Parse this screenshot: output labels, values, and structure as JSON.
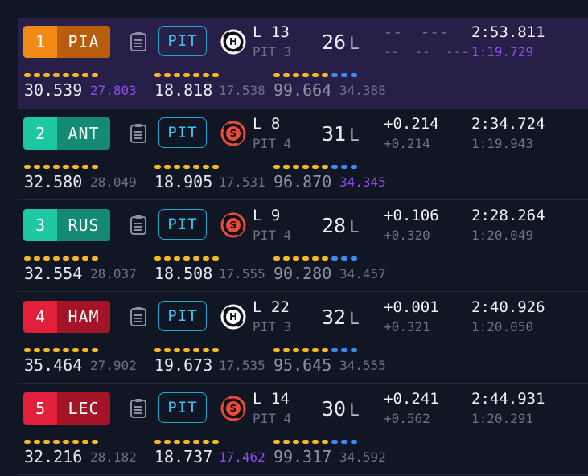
{
  "colors": {
    "orange": "#f28a18",
    "orange_dark": "#b75d0c",
    "teal": "#1ec8a5",
    "teal_dark": "#148a74",
    "red": "#e3203c",
    "red_dark": "#a31426",
    "accent_cyan": "#22a6cf",
    "purple_best": "#8f4ce6",
    "dot_yellow": "#f5b820",
    "dot_blue": "#3d8bf2"
  },
  "drivers": [
    {
      "position": "1",
      "code": "PIA",
      "team_color": "orange",
      "pit_label": "PIT",
      "tyre": "hard",
      "tyre_letter": "H",
      "lap": "L 13",
      "pits": "PIT 3",
      "laps": "26",
      "laps_unit": "L",
      "gap": "--  ---",
      "interval": "--  --  ---",
      "time": "2:53.811",
      "last_lap": "1:19.729",
      "last_lap_best": true,
      "s1": "30.539",
      "s1_best": "27.803",
      "s2": "18.818",
      "s2_best": "17.538",
      "s3": "99.664",
      "s3_best": "34.388",
      "highlight": true
    },
    {
      "position": "2",
      "code": "ANT",
      "team_color": "teal",
      "pit_label": "PIT",
      "tyre": "soft",
      "tyre_letter": "S",
      "lap": "L 8",
      "pits": "PIT 4",
      "laps": "31",
      "laps_unit": "L",
      "gap": "+0.214",
      "interval": "+0.214",
      "time": "2:34.724",
      "last_lap": "1:19.943",
      "last_lap_best": false,
      "s1": "32.580",
      "s1_best": "28.049",
      "s2": "18.905",
      "s2_best": "17.531",
      "s3": "96.870",
      "s3_best": "34.345",
      "s3_best_purple": true,
      "highlight": false
    },
    {
      "position": "3",
      "code": "RUS",
      "team_color": "teal",
      "pit_label": "PIT",
      "tyre": "soft",
      "tyre_letter": "S",
      "lap": "L 9",
      "pits": "PIT 4",
      "laps": "28",
      "laps_unit": "L",
      "gap": "+0.106",
      "interval": "+0.320",
      "time": "2:28.264",
      "last_lap": "1:20.049",
      "last_lap_best": false,
      "s1": "32.554",
      "s1_best": "28.037",
      "s2": "18.508",
      "s2_best": "17.555",
      "s3": "90.280",
      "s3_best": "34.457",
      "highlight": false
    },
    {
      "position": "4",
      "code": "HAM",
      "team_color": "red",
      "pit_label": "PIT",
      "tyre": "hard",
      "tyre_letter": "H",
      "lap": "L 22",
      "pits": "PIT 3",
      "laps": "32",
      "laps_unit": "L",
      "gap": "+0.001",
      "interval": "+0.321",
      "time": "2:40.926",
      "last_lap": "1:20.050",
      "last_lap_best": false,
      "s1": "35.464",
      "s1_best": "27.902",
      "s2": "19.673",
      "s2_best": "17.535",
      "s3": "95.645",
      "s3_best": "34.555",
      "highlight": false
    },
    {
      "position": "5",
      "code": "LEC",
      "team_color": "red",
      "pit_label": "PIT",
      "tyre": "soft",
      "tyre_letter": "S",
      "lap": "L 14",
      "pits": "PIT 4",
      "laps": "30",
      "laps_unit": "L",
      "gap": "+0.241",
      "interval": "+0.562",
      "time": "2:44.931",
      "last_lap": "1:20.291",
      "last_lap_best": false,
      "s1": "32.216",
      "s1_best": "28.182",
      "s2": "18.737",
      "s2_best": "17.462",
      "s2_best_purple": true,
      "s3": "99.317",
      "s3_best": "34.592",
      "highlight": false
    }
  ]
}
